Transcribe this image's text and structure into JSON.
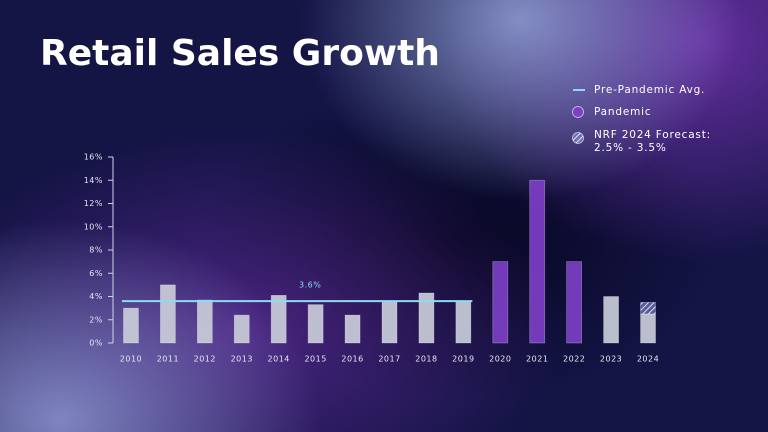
{
  "chart_data": {
    "type": "bar",
    "title": "Retail Sales Growth",
    "categories": [
      "2010",
      "2011",
      "2012",
      "2013",
      "2014",
      "2015",
      "2016",
      "2017",
      "2018",
      "2019",
      "2020",
      "2021",
      "2022",
      "2023",
      "2024"
    ],
    "series": [
      {
        "color": "#c9cdd9",
        "values": [
          3.0,
          5.0,
          3.7,
          2.4,
          4.1,
          3.3,
          2.4,
          3.6,
          4.3,
          3.6,
          null,
          null,
          null,
          4.0,
          2.5
        ]
      },
      {
        "name": "Pandemic",
        "color": "#7c3fc6",
        "values": [
          null,
          null,
          null,
          null,
          null,
          null,
          null,
          null,
          null,
          null,
          7.0,
          14.0,
          7.0,
          null,
          null
        ]
      },
      {
        "name": "NRF 2024 Forecast:",
        "legend_note": "2.5% - 3.5%",
        "color": "#8d9be6",
        "hatched": true,
        "values": [
          null,
          null,
          null,
          null,
          null,
          null,
          null,
          null,
          null,
          null,
          null,
          null,
          null,
          null,
          1.0
        ]
      }
    ],
    "stacked": true,
    "reference_line": {
      "name": "Pre-Pandemic Avg.",
      "value": 3.6,
      "value_label": "3.6%",
      "color": "#8fdaf3",
      "span": [
        "2010",
        "2019"
      ]
    },
    "ylim": [
      0,
      16
    ],
    "yticks": [
      {
        "value": 0,
        "label": "0%"
      },
      {
        "value": 2,
        "label": "2%"
      },
      {
        "value": 4,
        "label": "4%"
      },
      {
        "value": 6,
        "label": "6%"
      },
      {
        "value": 8,
        "label": "8%"
      },
      {
        "value": 10,
        "label": "10%"
      },
      {
        "value": 12,
        "label": "12%"
      },
      {
        "value": 14,
        "label": "14%"
      },
      {
        "value": 16,
        "label": "16%"
      }
    ]
  }
}
